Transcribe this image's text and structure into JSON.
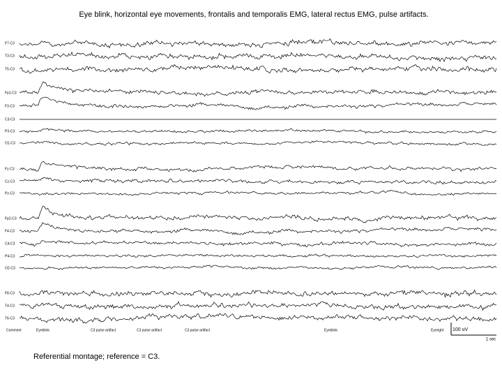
{
  "title": "Eye blink, horizontal eye movements, frontalis and temporalis EMG, lateral rectus EMG, pulse artifacts.",
  "channels": [
    "F7-C3",
    "T3-C3",
    "T5-C3",
    "Fp1-C3",
    "F3-C3",
    "C3-C3",
    "P3-C3",
    "O1-C3",
    "Fz-C3",
    "Cz-C3",
    "Pz-C3",
    "Fp2-C3",
    "F4-C3",
    "C4-C3",
    "P4-C3",
    "O2-C3",
    "F8-C3",
    "T4-C3",
    "T6-C3"
  ],
  "comments": [
    "Comment",
    "Eyeblink",
    "C3 pulse artifact",
    "C3 pulse artifact",
    "C3 pulse artifact",
    "Eyeblink",
    "Eyeright"
  ],
  "scale": {
    "amplitude": "100 uV",
    "time": "1 sec"
  },
  "caption": "Referential montage; reference = C3."
}
